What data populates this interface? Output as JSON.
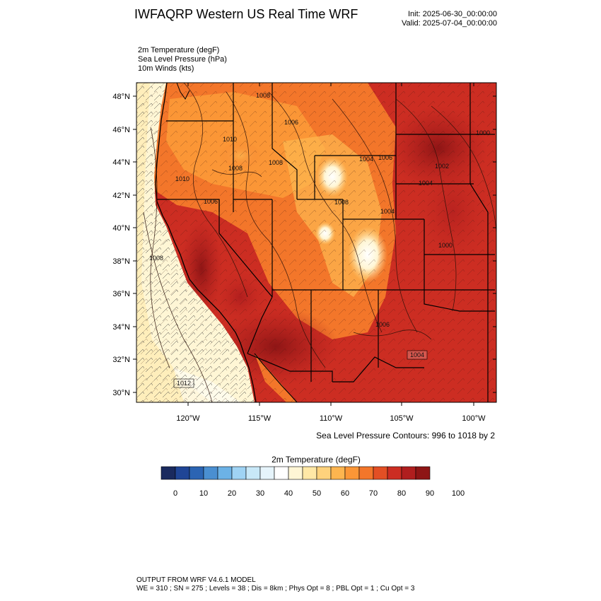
{
  "header": {
    "title": "IWFAQRP Western US Real Time WRF",
    "init": "Init: 2025-06-30_00:00:00",
    "valid": "Valid: 2025-07-04_00:00:00"
  },
  "fields": [
    "2m Temperature   (degF)",
    "Sea Level Pressure   (hPa)",
    "10m Winds   (kts)"
  ],
  "map": {
    "lat_ticks": [
      "48°N",
      "46°N",
      "44°N",
      "42°N",
      "40°N",
      "38°N",
      "36°N",
      "34°N",
      "32°N",
      "30°N"
    ],
    "lon_ticks": [
      "120°W",
      "115°W",
      "110°W",
      "105°W",
      "100°W"
    ],
    "contour_labels": [
      "1008",
      "1006",
      "1010",
      "1008",
      "1008",
      "1004",
      "1006",
      "1006",
      "1008",
      "1010",
      "1012",
      "1000",
      "1002",
      "1004",
      "1004",
      "1000",
      "1008",
      "1006",
      "1004"
    ],
    "slp_note": "Sea Level Pressure Contours: 996 to 1018 by 2"
  },
  "colorbar": {
    "title": "2m Temperature  (degF)",
    "colors": [
      "#1a2a5e",
      "#1f4596",
      "#2b64b3",
      "#4a8fd1",
      "#6cb2e6",
      "#9fd3f4",
      "#c8e8f8",
      "#e6f4fb",
      "#ffffff",
      "#fff6d5",
      "#ffe8a6",
      "#fed27c",
      "#fdb54f",
      "#fb9636",
      "#f3762a",
      "#e34f24",
      "#cc2d22",
      "#b01e1e",
      "#8e1515"
    ],
    "labels": [
      "0",
      "10",
      "20",
      "30",
      "40",
      "50",
      "60",
      "70",
      "80",
      "90",
      "100"
    ]
  },
  "footer": {
    "line1": "OUTPUT FROM WRF V4.6.1 MODEL",
    "line2": "WE = 310 ; SN = 275 ; Levels = 38 ; Dis = 8km ; Phys Opt = 8 ; PBL Opt = 1 ; Cu Opt = 3"
  }
}
